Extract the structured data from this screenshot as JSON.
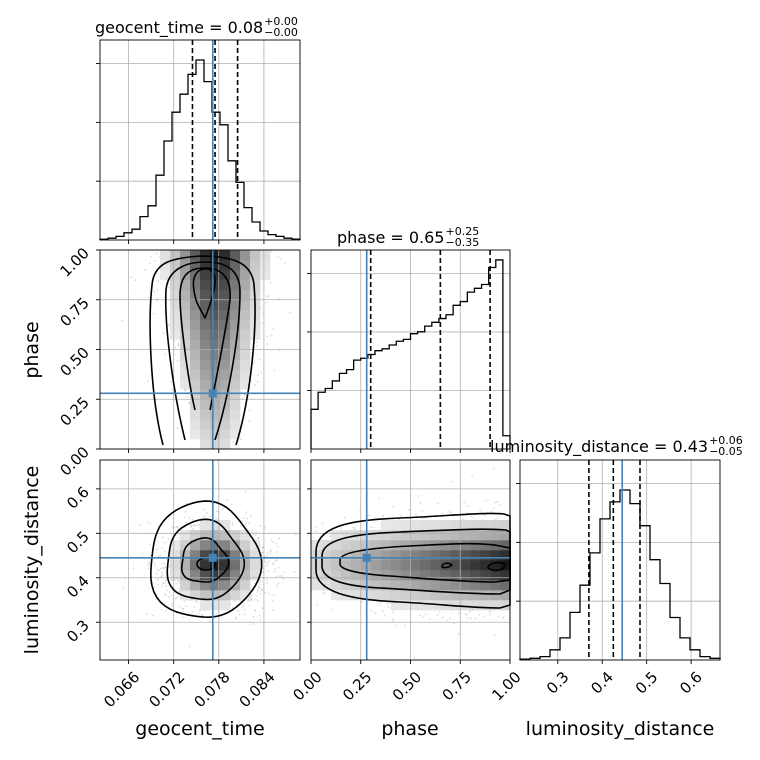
{
  "chart_data": {
    "type": "corner",
    "parameters": [
      {
        "name": "geocent_time",
        "median": 0.0775,
        "lower": 0.0745,
        "upper": 0.0805,
        "truth": 0.0772,
        "range": [
          0.0622,
          0.0888
        ],
        "ticks": [
          0.066,
          0.072,
          0.078,
          0.084
        ],
        "tick_labels": [
          "0.066",
          "0.072",
          "0.078",
          "0.084"
        ]
      },
      {
        "name": "phase",
        "median": 0.65,
        "lower": 0.3,
        "upper": 0.9,
        "truth": 0.28,
        "range": [
          0.0,
          1.0
        ],
        "ticks": [
          0.0,
          0.25,
          0.5,
          0.75,
          1.0
        ],
        "tick_labels": [
          "0.00",
          "0.25",
          "0.50",
          "0.75",
          "1.00"
        ]
      },
      {
        "name": "luminosity_distance",
        "median": 0.425,
        "lower": 0.37,
        "upper": 0.485,
        "truth": 0.445,
        "range": [
          0.215,
          0.665
        ],
        "ticks": [
          0.3,
          0.4,
          0.5,
          0.6
        ],
        "tick_labels": [
          "0.3",
          "0.4",
          "0.5",
          "0.6"
        ]
      }
    ],
    "titles": [
      {
        "main": "geocent_time = 0.08",
        "sup": "+0.00",
        "sub": "−0.00"
      },
      {
        "main": "phase = 0.65",
        "sup": "+0.25",
        "sub": "−0.35"
      },
      {
        "main": "luminosity_distance = 0.43",
        "sup": "+0.06",
        "sub": "−0.05"
      }
    ],
    "histograms": {
      "geocent_time": [
        0.004,
        0.01,
        0.02,
        0.04,
        0.06,
        0.13,
        0.19,
        0.36,
        0.55,
        0.71,
        0.81,
        0.92,
        1.0,
        0.88,
        0.71,
        0.64,
        0.44,
        0.32,
        0.18,
        0.1,
        0.05,
        0.03,
        0.02,
        0.01,
        0.005
      ],
      "phase": [
        0.21,
        0.3,
        0.32,
        0.36,
        0.4,
        0.42,
        0.47,
        0.48,
        0.5,
        0.52,
        0.53,
        0.55,
        0.57,
        0.58,
        0.61,
        0.62,
        0.65,
        0.67,
        0.69,
        0.71,
        0.76,
        0.78,
        0.83,
        0.85,
        0.87,
        0.96,
        1.0,
        0.07
      ],
      "luminosity_distance": [
        0.005,
        0.01,
        0.02,
        0.06,
        0.13,
        0.28,
        0.44,
        0.63,
        0.83,
        0.93,
        1.0,
        0.92,
        0.79,
        0.59,
        0.45,
        0.25,
        0.13,
        0.06,
        0.02,
        0.01
      ]
    },
    "truth_color": "#4682b4",
    "line_color": "#000000",
    "grid": true
  }
}
